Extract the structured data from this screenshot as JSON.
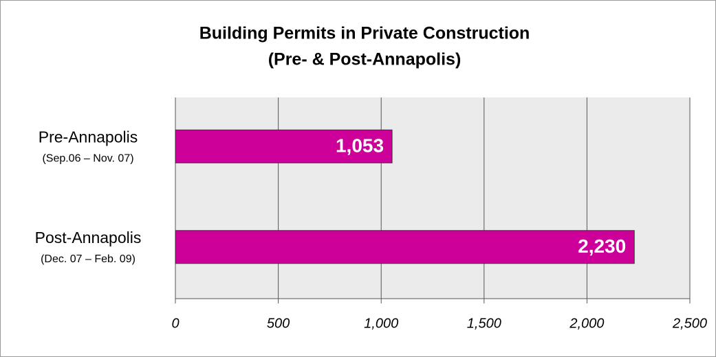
{
  "chart_data": {
    "type": "bar",
    "orientation": "horizontal",
    "title": "Building Permits in Private Construction",
    "subtitle": "(Pre- & Post-Annapolis)",
    "categories": [
      "Pre-Annapolis",
      "Post-Annapolis"
    ],
    "subcategories": [
      "(Sep.06 – Nov. 07)",
      "(Dec. 07 – Feb. 09)"
    ],
    "values": [
      1053,
      2230
    ],
    "value_labels": [
      "1,053",
      "2,230"
    ],
    "color": "#cc0099",
    "xlim": [
      0,
      2500
    ],
    "xticks": [
      0,
      500,
      {
        "value": 1000,
        "label": "1,000"
      },
      {
        "value": 1500,
        "label": "1,500"
      },
      {
        "value": 2000,
        "label": "2,000"
      },
      {
        "value": 2500,
        "label": "2,500"
      }
    ],
    "grid": true
  }
}
